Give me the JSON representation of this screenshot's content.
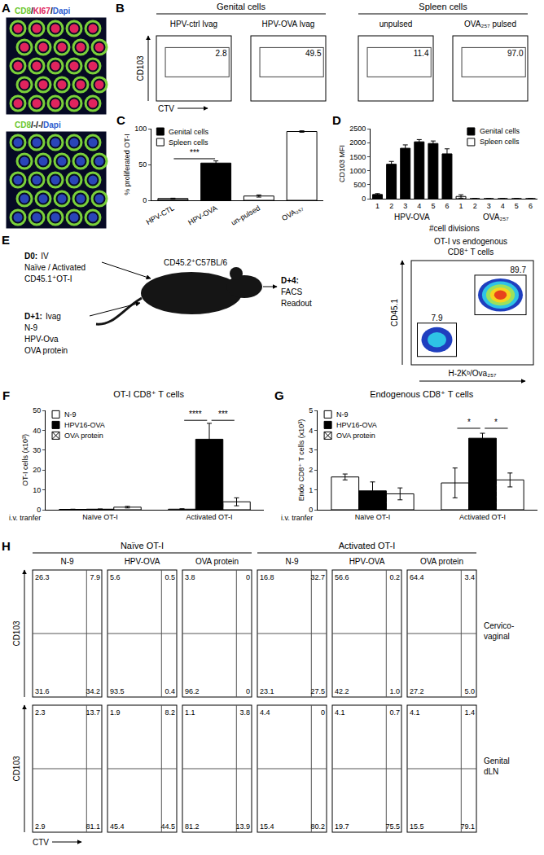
{
  "panel_A": {
    "label": "A",
    "images": [
      {
        "label": [
          {
            "text": "CD8",
            "color": "#6cc82e"
          },
          {
            "text": "/",
            "color": "#000000"
          },
          {
            "text": "KI67",
            "color": "#e0245e"
          },
          {
            "text": "/",
            "color": "#000000"
          },
          {
            "text": "Dapi",
            "color": "#2f5fd0"
          }
        ]
      },
      {
        "label": [
          {
            "text": "CD8",
            "color": "#6cc82e"
          },
          {
            "text": "/-/-/",
            "color": "#000000"
          },
          {
            "text": "Dapi",
            "color": "#2f5fd0"
          }
        ]
      }
    ]
  },
  "panel_B": {
    "label": "B",
    "y_axis": "CD103",
    "x_axis": "CTV",
    "groups": [
      {
        "title": "Genital cells",
        "plots": [
          {
            "title": "HPV-ctrl Ivag",
            "gate": "2.8"
          },
          {
            "title": "HPV-OVA Ivag",
            "gate": "49.5"
          }
        ]
      },
      {
        "title": "Spleen cells",
        "plots": [
          {
            "title": "unpulsed",
            "gate": "11.4"
          },
          {
            "title": "OVA₂₅₇ pulsed",
            "gate": "97.0"
          }
        ]
      }
    ]
  },
  "panel_E": {
    "label": "E",
    "steps": [
      {
        "day": "D0:",
        "route": "IV",
        "lines": [
          "Naïve / Activated",
          "CD45.1⁺OT-I"
        ]
      },
      {
        "day": "D+1:",
        "route": "Ivag",
        "lines": [
          "N-9",
          "HPV-Ova",
          "OVA protein"
        ]
      },
      {
        "day": "D+4:",
        "lines": [
          "FACS",
          "Readout"
        ]
      }
    ],
    "mouse": "CD45.2⁺C57BL/6",
    "flow": {
      "title": [
        "OT-I vs endogenous",
        "CD8⁺ T cells"
      ],
      "y_axis": "CD45.1",
      "x_axis": "H-2Kᵇ/Ova₂₅₇",
      "gates": [
        "89.7",
        "7.9"
      ]
    }
  },
  "panel_H": {
    "label": "H",
    "y_axis": "CD103",
    "x_axis": "CTV",
    "groups": [
      {
        "title": "Naïve OT-I",
        "columns": [
          "N-9",
          "HPV-OVA",
          "OVA protein"
        ]
      },
      {
        "title": "Activated OT-I",
        "columns": [
          "N-9",
          "HPV-OVA",
          "OVA protein"
        ]
      }
    ],
    "rows": [
      {
        "title": [
          "Cervico-",
          "vaginal"
        ],
        "plots": [
          [
            "26.3",
            "7.9",
            "31.6",
            "34.2"
          ],
          [
            "5.6",
            "0.5",
            "93.5",
            "0.4"
          ],
          [
            "3.8",
            "0",
            "96.2",
            "0"
          ],
          [
            "16.8",
            "32.7",
            "23.1",
            "27.5"
          ],
          [
            "56.6",
            "0.2",
            "42.2",
            "1.0"
          ],
          [
            "64.4",
            "3.4",
            "27.2",
            "5.0"
          ]
        ]
      },
      {
        "title": [
          "Genital",
          "dLN"
        ],
        "plots": [
          [
            "2.3",
            "13.7",
            "2.9",
            "81.1"
          ],
          [
            "1.9",
            "8.2",
            "45.4",
            "44.5"
          ],
          [
            "1.1",
            "3.8",
            "81.2",
            "13.9"
          ],
          [
            "4.4",
            "0",
            "15.4",
            "80.2"
          ],
          [
            "4.1",
            "0.7",
            "19.7",
            "75.5"
          ],
          [
            "4.1",
            "1.4",
            "15.5",
            "79.1"
          ]
        ]
      }
    ]
  },
  "chart_data": [
    {
      "label": "C",
      "type": "bar",
      "categories": [
        "HPV-CTL",
        "HPV-OVA",
        "un-pulsed",
        "OVA₂₅₇"
      ],
      "series": [
        {
          "name": "Genital cells",
          "color": "#000000",
          "colors": [
            "#8c8c8c",
            "#000000",
            null,
            null
          ],
          "values": [
            2.5,
            52,
            null,
            null
          ],
          "errors": [
            0.5,
            3,
            null,
            null
          ]
        },
        {
          "name": "Spleen cells",
          "color": "#ffffff",
          "values": [
            null,
            null,
            6,
            96
          ],
          "errors": [
            null,
            null,
            1.5,
            1
          ]
        }
      ],
      "stacked": false,
      "y_label": "% proliferated OT-I",
      "ylim": [
        0,
        100
      ],
      "yticks": [
        0,
        50,
        100
      ],
      "legend": "upper left",
      "brackets": [
        {
          "from": 0,
          "to": 1,
          "y": 58,
          "text": "***"
        }
      ]
    },
    {
      "label": "D",
      "type": "bar",
      "categories": [
        "1",
        "2",
        "3",
        "4",
        "5",
        "6",
        "1",
        "2",
        "3",
        "4",
        "5",
        "6"
      ],
      "groups": [
        "HPV-OVA",
        "HPV-OVA",
        "HPV-OVA",
        "HPV-OVA",
        "HPV-OVA",
        "HPV-OVA",
        "OVA₂₅₇",
        "OVA₂₅₇",
        "OVA₂₅₇",
        "OVA₂₅₇",
        "OVA₂₅₇",
        "OVA₂₅₇"
      ],
      "series": [
        {
          "name": "Genital cells",
          "color": "#000000",
          "values": [
            150,
            1230,
            1800,
            2030,
            1970,
            1600,
            null,
            null,
            null,
            null,
            null,
            null
          ],
          "errors": [
            30,
            100,
            120,
            80,
            90,
            180,
            null,
            null,
            null,
            null,
            null,
            null
          ]
        },
        {
          "name": "Spleen cells",
          "color": "#ffffff",
          "values": [
            null,
            null,
            null,
            null,
            null,
            null,
            80,
            0,
            0,
            0,
            0,
            0
          ],
          "errors": [
            null,
            null,
            null,
            null,
            null,
            null,
            60,
            0,
            0,
            0,
            0,
            0
          ]
        }
      ],
      "stacked": false,
      "x_label": "#cell divisions",
      "y_label": "CD103 MFI",
      "ylim": [
        0,
        2500
      ],
      "yticks": [
        0,
        500,
        1000,
        1500,
        2000,
        2500
      ],
      "legend": "upper right"
    },
    {
      "label": "F",
      "type": "bar",
      "title": "OT-I CD8⁺ T cells",
      "categories": [
        "Naïve OT-I",
        "Activated OT-I"
      ],
      "x_label": "i.v. tranfer",
      "series": [
        {
          "name": "N-9",
          "color": "#ffffff",
          "values": [
            0.2,
            0.3
          ],
          "errors": [
            0.1,
            0.2
          ]
        },
        {
          "name": "HPV16-OVA",
          "color": "#000000",
          "values": [
            0.3,
            35.5
          ],
          "errors": [
            0.1,
            8
          ]
        },
        {
          "name": "OVA protein",
          "color": "#ffffff",
          "marker": "checkered",
          "values": [
            1.3,
            4
          ],
          "errors": [
            0.4,
            2
          ]
        }
      ],
      "stacked": false,
      "y_label": "OT-I cells (x10³)",
      "ylim": [
        0,
        50
      ],
      "yticks": [
        0,
        10,
        20,
        30,
        40,
        50
      ],
      "legend": "upper left",
      "brackets": [
        {
          "category": 1,
          "from": "N-9",
          "to": "HPV16-OVA",
          "y": 45,
          "text": "****"
        },
        {
          "category": 1,
          "from": "HPV16-OVA",
          "to": "OVA protein",
          "y": 45,
          "text": "***"
        }
      ]
    },
    {
      "label": "G",
      "type": "bar",
      "title": "Endogenous CD8⁺ T cells",
      "categories": [
        "Naïve OT-I",
        "Activated OT-I"
      ],
      "x_label": "i.v. tranfer",
      "series": [
        {
          "name": "N-9",
          "color": "#ffffff",
          "values": [
            1.65,
            1.35
          ],
          "errors": [
            0.15,
            0.75
          ]
        },
        {
          "name": "HPV16-OVA",
          "color": "#000000",
          "values": [
            0.95,
            3.6
          ],
          "errors": [
            0.45,
            0.25
          ]
        },
        {
          "name": "OVA protein",
          "color": "#ffffff",
          "marker": "checkered",
          "values": [
            0.8,
            1.5
          ],
          "errors": [
            0.3,
            0.35
          ]
        }
      ],
      "stacked": false,
      "y_label": "Endo CD8⁺ T cells (x10³)",
      "ylim": [
        0,
        5
      ],
      "yticks": [
        0,
        1,
        2,
        3,
        4,
        5
      ],
      "legend": "upper left",
      "brackets": [
        {
          "category": 1,
          "from": "N-9",
          "to": "HPV16-OVA",
          "y": 4.1,
          "text": "*"
        },
        {
          "category": 1,
          "from": "HPV16-OVA",
          "to": "OVA protein",
          "y": 4.1,
          "text": "*"
        }
      ]
    }
  ]
}
